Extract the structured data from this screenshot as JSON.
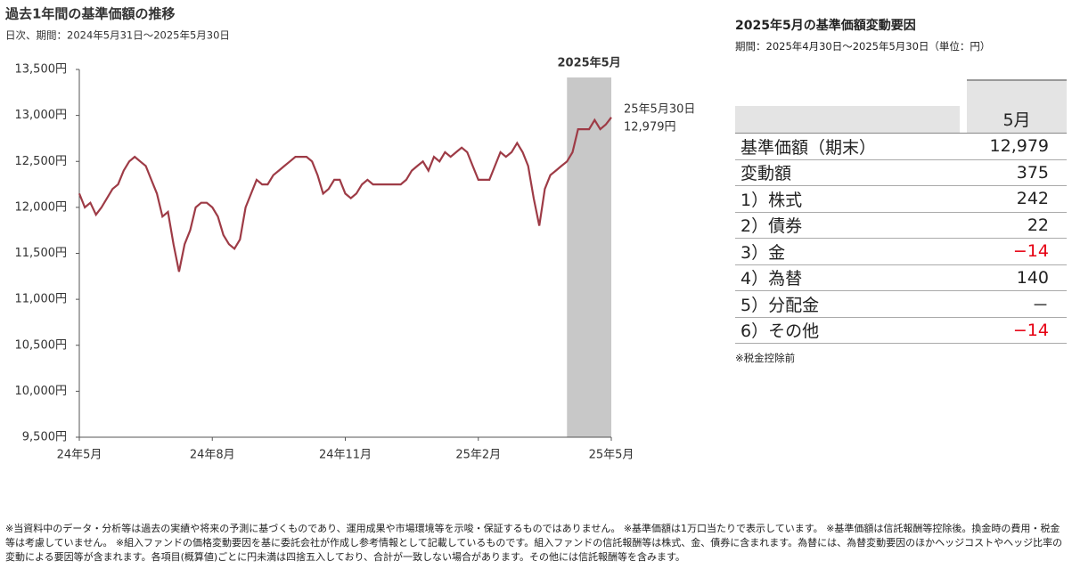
{
  "chart_data": {
    "type": "line",
    "title": "過去1年間の基準価額の推移",
    "subtitle": "日次、期間：2024年5月31日～2025年5月30日",
    "categories": [
      "24年5月",
      null,
      null,
      null,
      null,
      null,
      null,
      null,
      null,
      null,
      null,
      null,
      null,
      null,
      null,
      null,
      null,
      null,
      null,
      null,
      null,
      null,
      null,
      null,
      "24年8月",
      null,
      null,
      null,
      null,
      null,
      null,
      null,
      null,
      null,
      null,
      null,
      null,
      null,
      null,
      null,
      null,
      null,
      null,
      null,
      null,
      null,
      null,
      null,
      "24年11月",
      null,
      null,
      null,
      null,
      null,
      null,
      null,
      null,
      null,
      null,
      null,
      null,
      null,
      null,
      null,
      null,
      null,
      null,
      null,
      null,
      null,
      null,
      null,
      "25年2月",
      null,
      null,
      null,
      null,
      null,
      null,
      null,
      null,
      null,
      null,
      null,
      null,
      null,
      null,
      null,
      null,
      null,
      null,
      null,
      null,
      null,
      null,
      null,
      "25年5月"
    ],
    "series": [
      {
        "name": "基準価額",
        "color": "#9e3b46",
        "values": [
          12150,
          12000,
          12050,
          11920,
          12000,
          12100,
          12200,
          12250,
          12400,
          12500,
          12550,
          12500,
          12450,
          12300,
          12150,
          11900,
          11950,
          11600,
          11300,
          11600,
          11750,
          12000,
          12050,
          12050,
          12000,
          11900,
          11700,
          11600,
          11550,
          11650,
          12000,
          12150,
          12300,
          12250,
          12250,
          12350,
          12400,
          12450,
          12500,
          12550,
          12550,
          12550,
          12500,
          12350,
          12150,
          12200,
          12300,
          12300,
          12150,
          12100,
          12150,
          12250,
          12300,
          12250,
          12250,
          12250,
          12250,
          12250,
          12250,
          12300,
          12400,
          12450,
          12500,
          12400,
          12550,
          12500,
          12600,
          12550,
          12600,
          12650,
          12600,
          12450,
          12300,
          12300,
          12300,
          12450,
          12600,
          12550,
          12600,
          12700,
          12600,
          12450,
          12100,
          11800,
          12200,
          12350,
          12400,
          12450,
          12500,
          12600,
          12850,
          12850,
          12850,
          12950,
          12850,
          12900,
          12979
        ]
      }
    ],
    "ylim": [
      9500,
      13500
    ],
    "yticks": [
      {
        "value": 9500,
        "label": "9,500円"
      },
      {
        "value": 10000,
        "label": "10,000円"
      },
      {
        "value": 10500,
        "label": "10,500円"
      },
      {
        "value": 11000,
        "label": "11,000円"
      },
      {
        "value": 11500,
        "label": "11,500円"
      },
      {
        "value": 12000,
        "label": "12,000円"
      },
      {
        "value": 12500,
        "label": "12,500円"
      },
      {
        "value": 13000,
        "label": "13,000円"
      },
      {
        "value": 13500,
        "label": "13,500円"
      }
    ],
    "highlight": {
      "label": "2025年5月",
      "start": 88,
      "end": 96,
      "color": "#c8c8c8"
    },
    "annotation": [
      "25年5月30日",
      "12,979円"
    ]
  },
  "table": {
    "title": "2025年5月の基準価額変動要因",
    "subtitle": "期間：2025年4月30日～2025年5月30日（単位：円）",
    "header": "5月",
    "rows": [
      {
        "label": "基準価額（期末）",
        "value": "12,979"
      },
      {
        "label": "変動額",
        "value": "375"
      },
      {
        "label": "1）株式",
        "value": "242"
      },
      {
        "label": "2）債券",
        "value": "22"
      },
      {
        "label": "3）金",
        "value": "−14",
        "color": "#e60012"
      },
      {
        "label": "4）為替",
        "value": "140"
      },
      {
        "label": "5）分配金",
        "value": "－"
      },
      {
        "label": "6）その他",
        "value": "−14",
        "color": "#e60012"
      }
    ],
    "note": "※税金控除前"
  },
  "footnote": "※当資料中のデータ・分析等は過去の実績や将来の予測に基づくものであり、運用成果や市場環境等を示唆・保証するものではありません。 ※基準価額は1万口当たりで表示しています。 ※基準価額は信託報酬等控除後。換金時の費用・税金等は考慮していません。 ※組入ファンドの価格変動要因を基に委託会社が作成し参考情報として記載しているものです。組入ファンドの信託報酬等は株式、金、債券に含まれます。為替には、為替変動要因のほかヘッジコストやヘッジ比率の変動による要因等が含まれます。各項目(概算値)ごとに円未満は四捨五入しており、合計が一致しない場合があります。その他には信託報酬等を含みます。"
}
